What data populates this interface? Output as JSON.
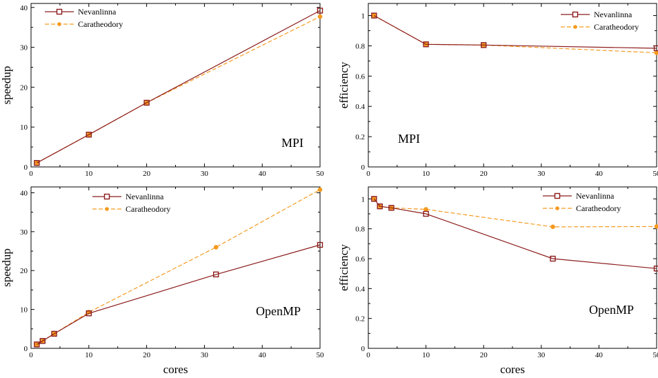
{
  "colors": {
    "nevanlinna": "#8b1a1a",
    "caratheodory": "#f59a1e",
    "marker_fill_nev": "#ffffff",
    "marker_fill_car": "#f59a1e"
  },
  "chart_data": [
    {
      "type": "line",
      "xlabel": "",
      "ylabel": "speedup",
      "xlim": [
        0,
        50
      ],
      "ylim": [
        0,
        41
      ],
      "xticks": [
        0,
        10,
        20,
        30,
        40,
        50
      ],
      "yticks": [
        0,
        10,
        20,
        30,
        40
      ],
      "yticks_labels": [
        "0",
        "10",
        "20",
        "30",
        "40"
      ],
      "annotation": "MPI",
      "legend_position": "top-left",
      "series": [
        {
          "name": "Nevanlinna",
          "x": [
            1,
            10,
            20,
            50
          ],
          "y": [
            1,
            8.1,
            16.1,
            39.2
          ]
        },
        {
          "name": "Caratheodory",
          "x": [
            1,
            10,
            20,
            50
          ],
          "y": [
            1,
            8.1,
            16.1,
            37.7
          ]
        }
      ]
    },
    {
      "type": "line",
      "xlabel": "",
      "ylabel": "efficiency",
      "xlim": [
        0,
        50
      ],
      "ylim": [
        0,
        1.08
      ],
      "xticks": [
        0,
        10,
        20,
        30,
        40,
        50
      ],
      "yticks": [
        0,
        0.2,
        0.4,
        0.6,
        0.8,
        1
      ],
      "yticks_labels": [
        "0",
        "0.2",
        "0.4",
        "0.6",
        "0.8",
        "1"
      ],
      "annotation": "MPI",
      "legend_position": "top-right",
      "series": [
        {
          "name": "Nevanlinna",
          "x": [
            1,
            10,
            20,
            50
          ],
          "y": [
            1,
            0.81,
            0.805,
            0.784
          ]
        },
        {
          "name": "Caratheodory",
          "x": [
            1,
            10,
            20,
            50
          ],
          "y": [
            1,
            0.81,
            0.805,
            0.754
          ]
        }
      ]
    },
    {
      "type": "line",
      "xlabel": "cores",
      "ylabel": "speedup",
      "xlim": [
        0,
        50
      ],
      "ylim": [
        0,
        41.5
      ],
      "xticks": [
        0,
        10,
        20,
        30,
        40,
        50
      ],
      "yticks": [
        0,
        10,
        20,
        30,
        40
      ],
      "yticks_labels": [
        "0",
        "10",
        "20",
        "30",
        "40"
      ],
      "annotation": "OpenMP",
      "legend_position": "top-center",
      "series": [
        {
          "name": "Nevanlinna",
          "x": [
            1,
            2,
            4,
            10,
            32,
            50
          ],
          "y": [
            1,
            1.9,
            3.75,
            9.0,
            19.0,
            26.6
          ]
        },
        {
          "name": "Caratheodory",
          "x": [
            1,
            2,
            4,
            10,
            32,
            50
          ],
          "y": [
            1,
            1.9,
            3.75,
            9.3,
            26.0,
            40.8
          ]
        }
      ]
    },
    {
      "type": "line",
      "xlabel": "cores",
      "ylabel": "efficiency",
      "xlim": [
        0,
        50
      ],
      "ylim": [
        0,
        1.08
      ],
      "xticks": [
        0,
        10,
        20,
        30,
        40,
        50
      ],
      "yticks": [
        0,
        0.2,
        0.4,
        0.6,
        0.8,
        1
      ],
      "yticks_labels": [
        "0",
        "0.2",
        "0.4",
        "0.6",
        "0.8",
        "1"
      ],
      "annotation": "OpenMP",
      "legend_position": "top-right",
      "series": [
        {
          "name": "Nevanlinna",
          "x": [
            1,
            2,
            4,
            10,
            32,
            50
          ],
          "y": [
            1,
            0.95,
            0.94,
            0.9,
            0.6,
            0.534
          ]
        },
        {
          "name": "Caratheodory",
          "x": [
            1,
            2,
            4,
            10,
            32,
            50
          ],
          "y": [
            1,
            0.95,
            0.94,
            0.93,
            0.813,
            0.815
          ]
        }
      ]
    }
  ]
}
